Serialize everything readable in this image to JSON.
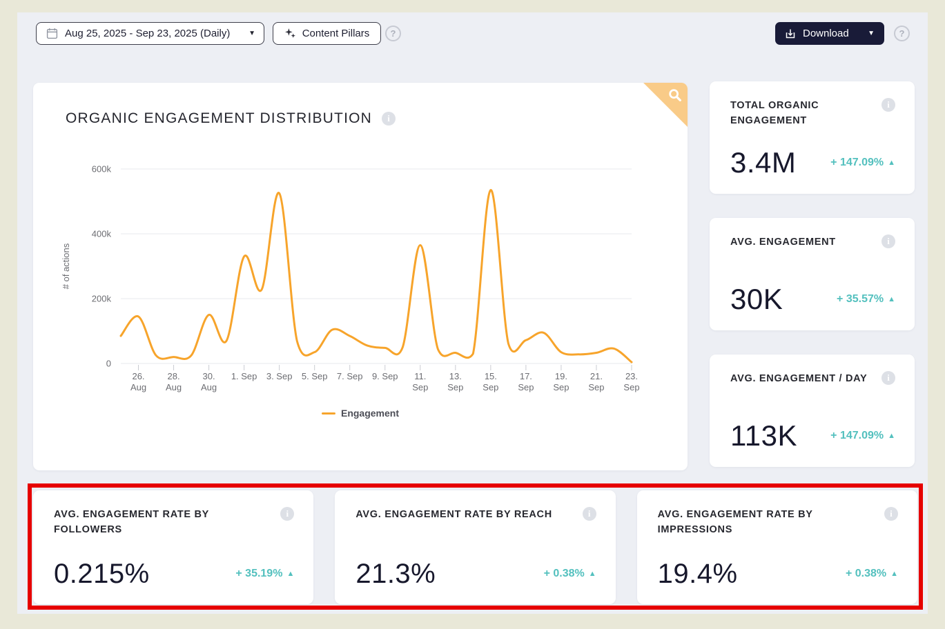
{
  "colors": {
    "page_bg": "#e9e8d8",
    "panel_bg": "#edeff4",
    "card_bg": "#ffffff",
    "accent_orange": "#f7a42b",
    "ribbon_orange": "#f9cb88",
    "teal": "#53c0be",
    "dark_text": "#17182c",
    "navy_button": "#191b38",
    "highlight_red": "#e60000"
  },
  "icons": {
    "up_arrow": "▲",
    "caret_down": "▼",
    "question_mark": "?",
    "info": "i"
  },
  "topbar": {
    "date_range": "Aug 25, 2025 - Sep 23, 2025 (Daily)",
    "content_pillars_label": "Content Pillars",
    "download_label": "Download"
  },
  "chart_data": {
    "type": "line",
    "title": "ORGANIC ENGAGEMENT DISTRIBUTION",
    "ylabel": "# of actions",
    "xlabel": "",
    "grid": true,
    "legend_position": "bottom",
    "ylim": [
      0,
      600000
    ],
    "yticks": [
      0,
      200000,
      400000,
      600000
    ],
    "ytick_labels": [
      "0",
      "200k",
      "400k",
      "600k"
    ],
    "x": [
      "2025-08-25",
      "2025-08-26",
      "2025-08-27",
      "2025-08-28",
      "2025-08-29",
      "2025-08-30",
      "2025-08-31",
      "2025-09-01",
      "2025-09-02",
      "2025-09-03",
      "2025-09-04",
      "2025-09-05",
      "2025-09-06",
      "2025-09-07",
      "2025-09-08",
      "2025-09-09",
      "2025-09-10",
      "2025-09-11",
      "2025-09-12",
      "2025-09-13",
      "2025-09-14",
      "2025-09-15",
      "2025-09-16",
      "2025-09-17",
      "2025-09-18",
      "2025-09-19",
      "2025-09-20",
      "2025-09-21",
      "2025-09-22",
      "2025-09-23"
    ],
    "x_tick_labels": [
      {
        "i": 1,
        "lines": [
          "26.",
          "Aug"
        ]
      },
      {
        "i": 3,
        "lines": [
          "28.",
          "Aug"
        ]
      },
      {
        "i": 5,
        "lines": [
          "30.",
          "Aug"
        ]
      },
      {
        "i": 7,
        "lines": [
          "1. Sep"
        ]
      },
      {
        "i": 9,
        "lines": [
          "3. Sep"
        ]
      },
      {
        "i": 11,
        "lines": [
          "5. Sep"
        ]
      },
      {
        "i": 13,
        "lines": [
          "7. Sep"
        ]
      },
      {
        "i": 15,
        "lines": [
          "9. Sep"
        ]
      },
      {
        "i": 17,
        "lines": [
          "11.",
          "Sep"
        ]
      },
      {
        "i": 19,
        "lines": [
          "13.",
          "Sep"
        ]
      },
      {
        "i": 21,
        "lines": [
          "15.",
          "Sep"
        ]
      },
      {
        "i": 23,
        "lines": [
          "17.",
          "Sep"
        ]
      },
      {
        "i": 25,
        "lines": [
          "19.",
          "Sep"
        ]
      },
      {
        "i": 27,
        "lines": [
          "21.",
          "Sep"
        ]
      },
      {
        "i": 29,
        "lines": [
          "23.",
          "Sep"
        ]
      }
    ],
    "series": [
      {
        "name": "Engagement",
        "color": "#f7a42b",
        "values": [
          85000,
          145000,
          25000,
          20000,
          25000,
          150000,
          70000,
          330000,
          228000,
          525000,
          70000,
          35000,
          104000,
          85000,
          55000,
          48000,
          50000,
          365000,
          45000,
          33000,
          30000,
          535000,
          62000,
          72000,
          95000,
          35000,
          28000,
          33000,
          46000,
          4000
        ]
      }
    ]
  },
  "kpi_cards": [
    {
      "title": "TOTAL ORGANIC ENGAGEMENT",
      "value": "3.4M",
      "delta": "+ 147.09%"
    },
    {
      "title": "AVG. ENGAGEMENT",
      "value": "30K",
      "delta": "+ 35.57%"
    },
    {
      "title": "AVG. ENGAGEMENT / DAY",
      "value": "113K",
      "delta": "+ 147.09%"
    }
  ],
  "rate_cards": [
    {
      "title": "AVG. ENGAGEMENT RATE BY FOLLOWERS",
      "value": "0.215%",
      "delta": "+ 35.19%"
    },
    {
      "title": "AVG. ENGAGEMENT RATE BY REACH",
      "value": "21.3%",
      "delta": "+ 0.38%"
    },
    {
      "title": "AVG. ENGAGEMENT RATE BY IMPRESSIONS",
      "value": "19.4%",
      "delta": "+ 0.38%"
    }
  ]
}
